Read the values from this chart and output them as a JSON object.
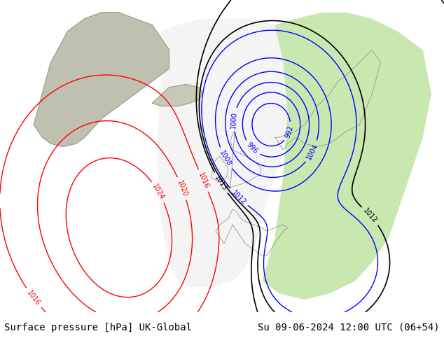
{
  "title_left": "Surface pressure [hPa] UK-Global",
  "title_right": "Su 09-06-2024 12:00 UTC (06+54)",
  "bg_color": "#c8c8a0",
  "map_area_color": "#d4d4b0",
  "sea_color": "#c8c8a0",
  "land_color": "#d0d0a8",
  "forecast_area_color_green": "#b0e0a0",
  "forecast_area_color_white": "#f0f0f0",
  "footer_bg": "#d0d0d0",
  "footer_text_color": "#000000",
  "footer_fontsize": 10,
  "figure_width": 6.34,
  "figure_height": 4.9,
  "dpi": 100
}
